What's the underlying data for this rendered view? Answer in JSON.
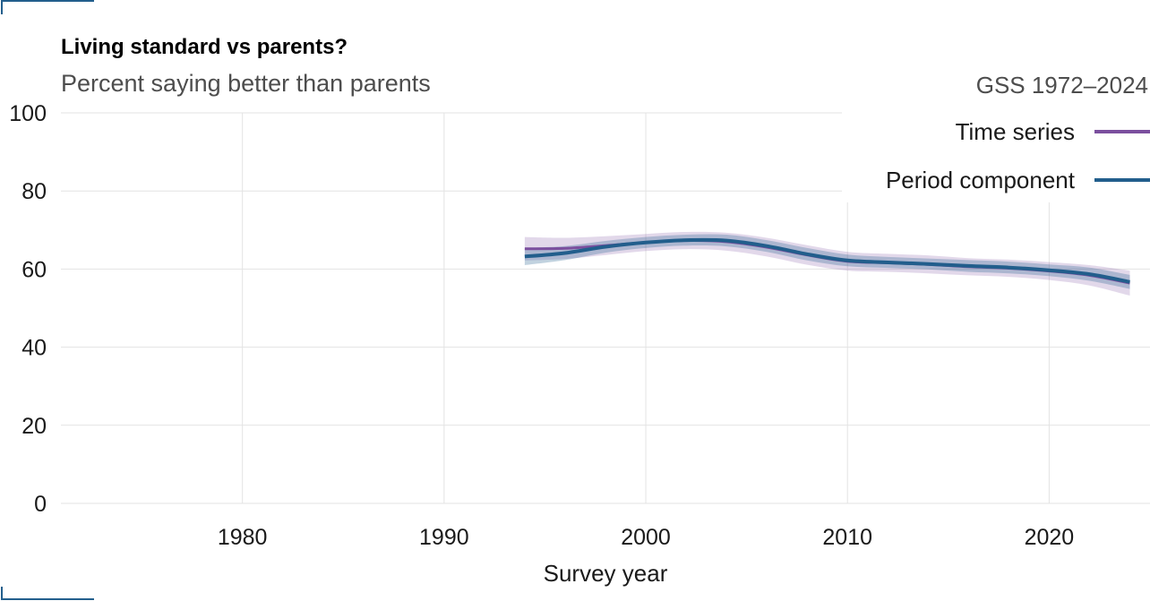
{
  "chart_data": {
    "type": "line",
    "title": "Living standard vs parents?",
    "subtitle": "Percent saying better than parents",
    "caption": "GSS 1972–2024",
    "xlabel": "Survey year",
    "ylabel": "",
    "xlim": [
      1971,
      2025
    ],
    "ylim": [
      0,
      100
    ],
    "x_ticks": [
      1980,
      1990,
      2000,
      2010,
      2020
    ],
    "y_ticks": [
      0,
      20,
      40,
      60,
      80,
      100
    ],
    "grid": true,
    "legend_position": "top-right",
    "series": [
      {
        "name": "Time series",
        "color": "#7b4f9e",
        "x": [
          1994,
          1996,
          1998,
          2000,
          2002,
          2004,
          2006,
          2008,
          2010,
          2012,
          2014,
          2016,
          2018,
          2020,
          2022,
          2024
        ],
        "y": [
          65.2,
          65.3,
          66.0,
          66.8,
          67.3,
          67.0,
          65.6,
          63.6,
          62.0,
          61.6,
          61.2,
          60.6,
          60.2,
          59.5,
          58.4,
          56.4
        ],
        "lower": [
          62.2,
          62.6,
          63.6,
          64.6,
          65.1,
          64.7,
          63.2,
          61.1,
          59.6,
          59.3,
          58.9,
          58.4,
          58.0,
          57.2,
          55.8,
          53.2
        ],
        "upper": [
          68.2,
          68.0,
          68.4,
          69.0,
          69.5,
          69.3,
          68.0,
          66.1,
          64.4,
          63.9,
          63.5,
          62.8,
          62.4,
          61.8,
          61.0,
          59.6
        ]
      },
      {
        "name": "Period component",
        "color": "#225e8c",
        "x": [
          1994,
          1996,
          1998,
          2000,
          2002,
          2004,
          2006,
          2008,
          2010,
          2012,
          2014,
          2016,
          2018,
          2020,
          2022,
          2024
        ],
        "y": [
          63.2,
          64.1,
          65.7,
          66.8,
          67.4,
          67.3,
          65.9,
          63.8,
          62.2,
          61.7,
          61.3,
          60.8,
          60.4,
          59.7,
          58.7,
          56.7
        ],
        "lower": [
          61.0,
          62.3,
          64.2,
          65.4,
          66.0,
          65.8,
          64.4,
          62.2,
          60.7,
          60.3,
          59.9,
          59.3,
          58.9,
          58.2,
          57.0,
          54.9
        ],
        "upper": [
          65.4,
          65.9,
          67.2,
          68.2,
          68.8,
          68.8,
          67.4,
          65.4,
          63.7,
          63.1,
          62.7,
          62.3,
          61.9,
          61.2,
          60.4,
          58.5
        ]
      }
    ]
  }
}
